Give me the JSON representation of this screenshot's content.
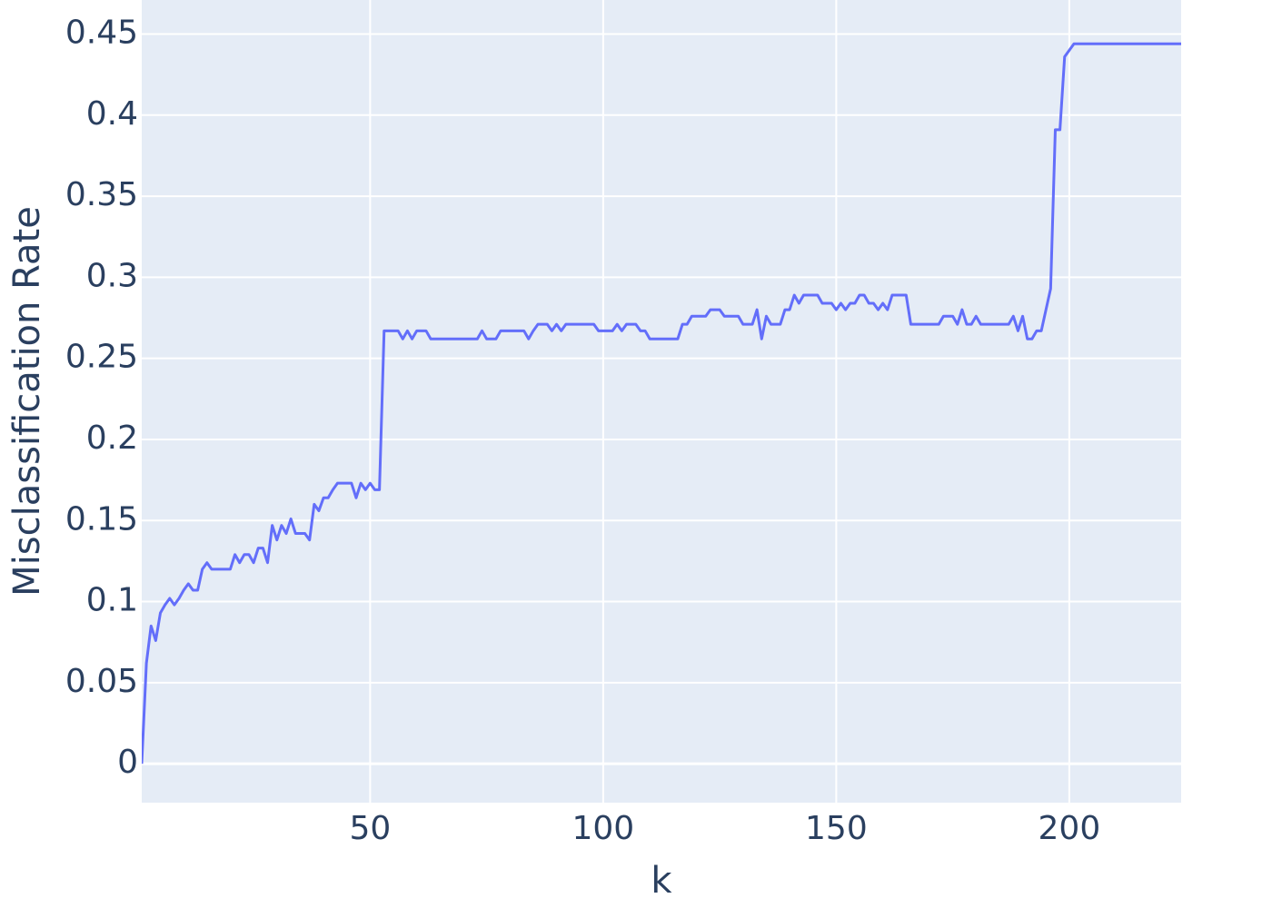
{
  "chart_data": {
    "type": "line",
    "x_label": "k",
    "y_label": "Misclassification Rate",
    "xlim": [
      1,
      224
    ],
    "ylim": [
      -0.024,
      0.471
    ],
    "xticks": [
      50,
      100,
      150,
      200
    ],
    "yticks": [
      0,
      0.05,
      0.1,
      0.15,
      0.2,
      0.25,
      0.3,
      0.35,
      0.4,
      0.45
    ],
    "grid": true,
    "series": [
      {
        "color": "#636efa",
        "x": [
          1,
          2,
          3,
          4,
          5,
          6,
          7,
          8,
          9,
          10,
          11,
          12,
          13,
          14,
          15,
          16,
          17,
          18,
          19,
          20,
          21,
          22,
          23,
          24,
          25,
          26,
          27,
          28,
          29,
          30,
          31,
          32,
          33,
          34,
          35,
          36,
          37,
          38,
          39,
          40,
          41,
          42,
          43,
          44,
          45,
          46,
          47,
          48,
          49,
          50,
          51,
          52,
          53,
          54,
          55,
          56,
          57,
          58,
          59,
          60,
          61,
          62,
          63,
          64,
          65,
          66,
          67,
          68,
          69,
          70,
          71,
          72,
          73,
          74,
          75,
          76,
          77,
          78,
          79,
          80,
          81,
          82,
          83,
          84,
          85,
          86,
          87,
          88,
          89,
          90,
          91,
          92,
          93,
          94,
          95,
          96,
          97,
          98,
          99,
          100,
          101,
          102,
          103,
          104,
          105,
          106,
          107,
          108,
          109,
          110,
          111,
          112,
          113,
          114,
          115,
          116,
          117,
          118,
          119,
          120,
          121,
          122,
          123,
          124,
          125,
          126,
          127,
          128,
          129,
          130,
          131,
          132,
          133,
          134,
          135,
          136,
          137,
          138,
          139,
          140,
          141,
          142,
          143,
          144,
          145,
          146,
          147,
          148,
          149,
          150,
          151,
          152,
          153,
          154,
          155,
          156,
          157,
          158,
          159,
          160,
          161,
          162,
          163,
          164,
          165,
          166,
          167,
          168,
          169,
          170,
          171,
          172,
          173,
          174,
          175,
          176,
          177,
          178,
          179,
          180,
          181,
          182,
          183,
          184,
          185,
          186,
          187,
          188,
          189,
          190,
          191,
          192,
          193,
          194,
          195,
          196,
          197,
          198,
          199,
          200,
          201,
          202,
          203,
          204,
          205,
          206,
          207,
          208,
          209,
          210,
          211,
          212,
          213,
          214,
          215,
          216,
          217,
          218,
          219,
          220,
          221,
          222,
          223,
          224
        ],
        "values": [
          0,
          0.062,
          0.085,
          0.076,
          0.093,
          0.098,
          0.102,
          0.098,
          0.102,
          0.107,
          0.111,
          0.107,
          0.107,
          0.12,
          0.124,
          0.12,
          0.12,
          0.12,
          0.12,
          0.12,
          0.129,
          0.124,
          0.129,
          0.129,
          0.124,
          0.133,
          0.133,
          0.124,
          0.147,
          0.138,
          0.147,
          0.142,
          0.151,
          0.142,
          0.142,
          0.142,
          0.138,
          0.16,
          0.156,
          0.164,
          0.164,
          0.169,
          0.173,
          0.173,
          0.173,
          0.173,
          0.164,
          0.173,
          0.169,
          0.173,
          0.169,
          0.169,
          0.267,
          0.267,
          0.267,
          0.267,
          0.262,
          0.267,
          0.262,
          0.267,
          0.267,
          0.267,
          0.262,
          0.262,
          0.262,
          0.262,
          0.262,
          0.262,
          0.262,
          0.262,
          0.262,
          0.262,
          0.262,
          0.267,
          0.262,
          0.262,
          0.262,
          0.267,
          0.267,
          0.267,
          0.267,
          0.267,
          0.267,
          0.262,
          0.267,
          0.271,
          0.271,
          0.271,
          0.267,
          0.271,
          0.267,
          0.271,
          0.271,
          0.271,
          0.271,
          0.271,
          0.271,
          0.271,
          0.267,
          0.267,
          0.267,
          0.267,
          0.271,
          0.267,
          0.271,
          0.271,
          0.271,
          0.267,
          0.267,
          0.262,
          0.262,
          0.262,
          0.262,
          0.262,
          0.262,
          0.262,
          0.271,
          0.271,
          0.276,
          0.276,
          0.276,
          0.276,
          0.28,
          0.28,
          0.28,
          0.276,
          0.276,
          0.276,
          0.276,
          0.271,
          0.271,
          0.271,
          0.28,
          0.262,
          0.276,
          0.271,
          0.271,
          0.271,
          0.28,
          0.28,
          0.289,
          0.284,
          0.289,
          0.289,
          0.289,
          0.289,
          0.284,
          0.284,
          0.284,
          0.28,
          0.284,
          0.28,
          0.284,
          0.284,
          0.289,
          0.289,
          0.284,
          0.284,
          0.28,
          0.284,
          0.28,
          0.289,
          0.289,
          0.289,
          0.289,
          0.271,
          0.271,
          0.271,
          0.271,
          0.271,
          0.271,
          0.271,
          0.276,
          0.276,
          0.276,
          0.271,
          0.28,
          0.271,
          0.271,
          0.276,
          0.271,
          0.271,
          0.271,
          0.271,
          0.271,
          0.271,
          0.271,
          0.276,
          0.267,
          0.276,
          0.262,
          0.262,
          0.267,
          0.267,
          0.28,
          0.293,
          0.391,
          0.391,
          0.436,
          0.44,
          0.444,
          0.444,
          0.444,
          0.444,
          0.444,
          0.444,
          0.444,
          0.444,
          0.444,
          0.444,
          0.444,
          0.444,
          0.444,
          0.444,
          0.444,
          0.444,
          0.444,
          0.444,
          0.444,
          0.444,
          0.444,
          0.444,
          0.444,
          0.444
        ]
      }
    ]
  }
}
